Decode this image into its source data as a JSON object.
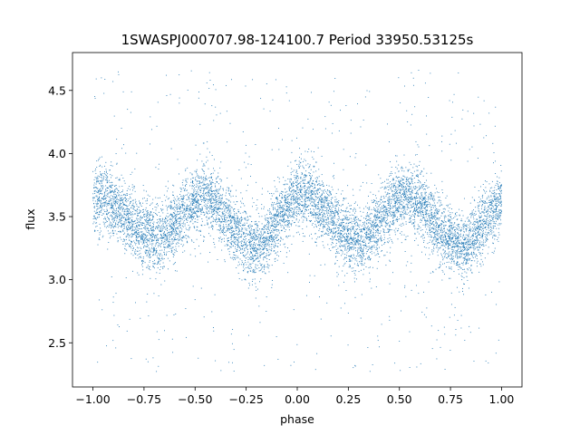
{
  "chart_data": {
    "type": "scatter",
    "title": "1SWASPJ000707.98-124100.7 Period 33950.53125s",
    "xlabel": "phase",
    "ylabel": "flux",
    "xlim": [
      -1.1,
      1.1
    ],
    "ylim": [
      2.15,
      4.8
    ],
    "xticks": [
      -1.0,
      -0.75,
      -0.5,
      -0.25,
      0.0,
      0.25,
      0.5,
      0.75,
      1.0
    ],
    "xtick_labels": [
      "−1.00",
      "−0.75",
      "−0.50",
      "−0.25",
      "0.00",
      "0.25",
      "0.50",
      "0.75",
      "1.00"
    ],
    "yticks": [
      2.5,
      3.0,
      3.5,
      4.0,
      4.5
    ],
    "ytick_labels": [
      "2.5",
      "3.0",
      "3.5",
      "4.0",
      "4.5"
    ],
    "grid": false,
    "marker_color": "#1f77b4",
    "model_curve": {
      "description_phase": [
        -1.0,
        -0.95,
        -0.9,
        -0.85,
        -0.8,
        -0.75,
        -0.7,
        -0.65,
        -0.6,
        -0.55,
        -0.5,
        -0.45,
        -0.4,
        -0.35,
        -0.3,
        -0.25,
        -0.2,
        -0.15,
        -0.1,
        -0.05,
        0.0,
        0.05,
        0.1,
        0.15,
        0.2,
        0.25,
        0.3,
        0.35,
        0.4,
        0.45,
        0.5,
        0.55,
        0.6,
        0.65,
        0.7,
        0.75,
        0.8,
        0.85,
        0.9,
        0.95,
        1.0
      ],
      "flux": [
        3.62,
        3.66,
        3.62,
        3.53,
        3.44,
        3.37,
        3.33,
        3.36,
        3.45,
        3.56,
        3.64,
        3.66,
        3.6,
        3.49,
        3.38,
        3.3,
        3.26,
        3.33,
        3.45,
        3.58,
        3.66,
        3.67,
        3.6,
        3.51,
        3.42,
        3.35,
        3.32,
        3.36,
        3.46,
        3.57,
        3.64,
        3.66,
        3.6,
        3.5,
        3.39,
        3.31,
        3.27,
        3.31,
        3.42,
        3.53,
        3.62
      ]
    },
    "scatter_sigma": 0.13,
    "outlier_fraction": 0.06,
    "n_points": 9000
  }
}
